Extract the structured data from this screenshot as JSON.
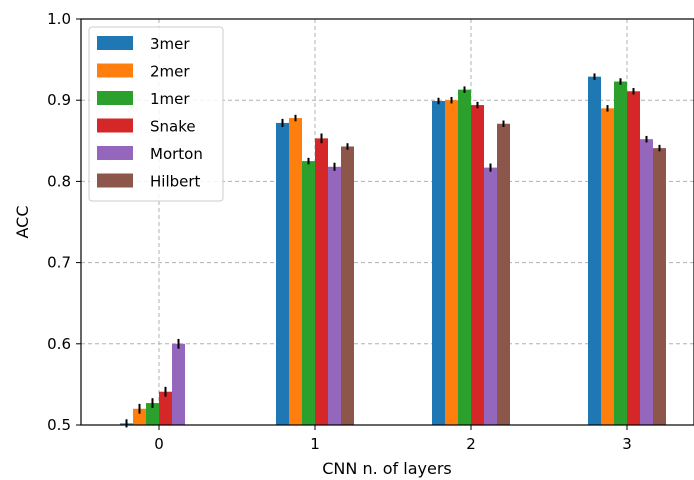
{
  "chart_data": {
    "type": "bar",
    "title": "",
    "xlabel": "CNN n. of layers",
    "ylabel": "ACC",
    "categories": [
      "0",
      "1",
      "2",
      "3"
    ],
    "ylim": [
      0.5,
      1.0
    ],
    "yticks": [
      "0.5",
      "0.6",
      "0.7",
      "0.8",
      "0.9",
      "1.0"
    ],
    "grid": "on",
    "legend_position": "top-left",
    "series": [
      {
        "name": "3mer",
        "color": "#1f77b4",
        "values": [
          0.502,
          0.872,
          0.899,
          0.929
        ],
        "errors": [
          0.005,
          0.005,
          0.004,
          0.004
        ]
      },
      {
        "name": "2mer",
        "color": "#ff7f0e",
        "values": [
          0.52,
          0.878,
          0.9,
          0.89
        ],
        "errors": [
          0.006,
          0.004,
          0.004,
          0.004
        ]
      },
      {
        "name": "1mer",
        "color": "#2ca02c",
        "values": [
          0.527,
          0.825,
          0.913,
          0.923
        ],
        "errors": [
          0.006,
          0.004,
          0.004,
          0.004
        ]
      },
      {
        "name": "Snake",
        "color": "#d62728",
        "values": [
          0.541,
          0.853,
          0.894,
          0.911
        ],
        "errors": [
          0.006,
          0.006,
          0.004,
          0.004
        ]
      },
      {
        "name": "Morton",
        "color": "#9467bd",
        "values": [
          0.6,
          0.818,
          0.817,
          0.852
        ],
        "errors": [
          0.006,
          0.005,
          0.005,
          0.004
        ]
      },
      {
        "name": "Hilbert",
        "color": "#8c564b",
        "values": [
          0.5,
          0.843,
          0.871,
          0.841
        ],
        "errors": [
          0.0,
          0.004,
          0.004,
          0.004
        ]
      }
    ]
  }
}
